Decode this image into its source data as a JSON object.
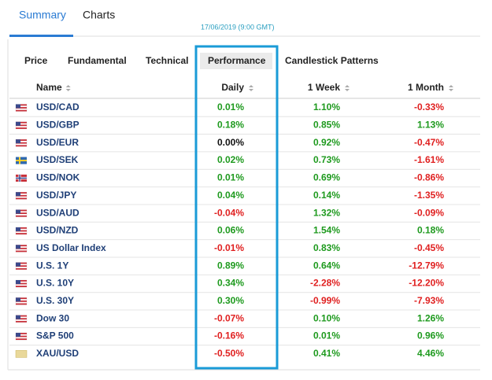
{
  "tabs": [
    "Summary",
    "Charts"
  ],
  "timestamp": "17/06/2019 (9:00 GMT)",
  "subtabs": [
    "Price",
    "Fundamental",
    "Technical",
    "Performance",
    "Candlestick Patterns"
  ],
  "table": {
    "headers": [
      "Name",
      "Daily",
      "1 Week",
      "1 Month"
    ],
    "rows": [
      [
        "USD/CAD",
        "0.01%",
        "1.10%",
        "-0.33%"
      ],
      [
        "USD/GBP",
        "0.18%",
        "0.85%",
        "1.13%"
      ],
      [
        "USD/EUR",
        "0.00%",
        "0.92%",
        "-0.47%"
      ],
      [
        "USD/SEK",
        "0.02%",
        "0.73%",
        "-1.61%"
      ],
      [
        "USD/NOK",
        "0.01%",
        "0.69%",
        "-0.86%"
      ],
      [
        "USD/JPY",
        "0.04%",
        "0.14%",
        "-1.35%"
      ],
      [
        "USD/AUD",
        "-0.04%",
        "1.32%",
        "-0.09%"
      ],
      [
        "USD/NZD",
        "0.06%",
        "1.54%",
        "0.18%"
      ],
      [
        "US Dollar Index",
        "-0.01%",
        "0.83%",
        "-0.45%"
      ],
      [
        "U.S. 1Y",
        "0.89%",
        "0.64%",
        "-12.79%"
      ],
      [
        "U.S. 10Y",
        "0.34%",
        "-2.28%",
        "-12.20%"
      ],
      [
        "U.S. 30Y",
        "0.30%",
        "-0.99%",
        "-7.93%"
      ],
      [
        "Dow 30",
        "-0.07%",
        "0.10%",
        "1.26%"
      ],
      [
        "S&P 500",
        "-0.16%",
        "0.01%",
        "0.96%"
      ],
      [
        "XAU/USD",
        "-0.50%",
        "0.41%",
        "4.46%"
      ]
    ]
  }
}
